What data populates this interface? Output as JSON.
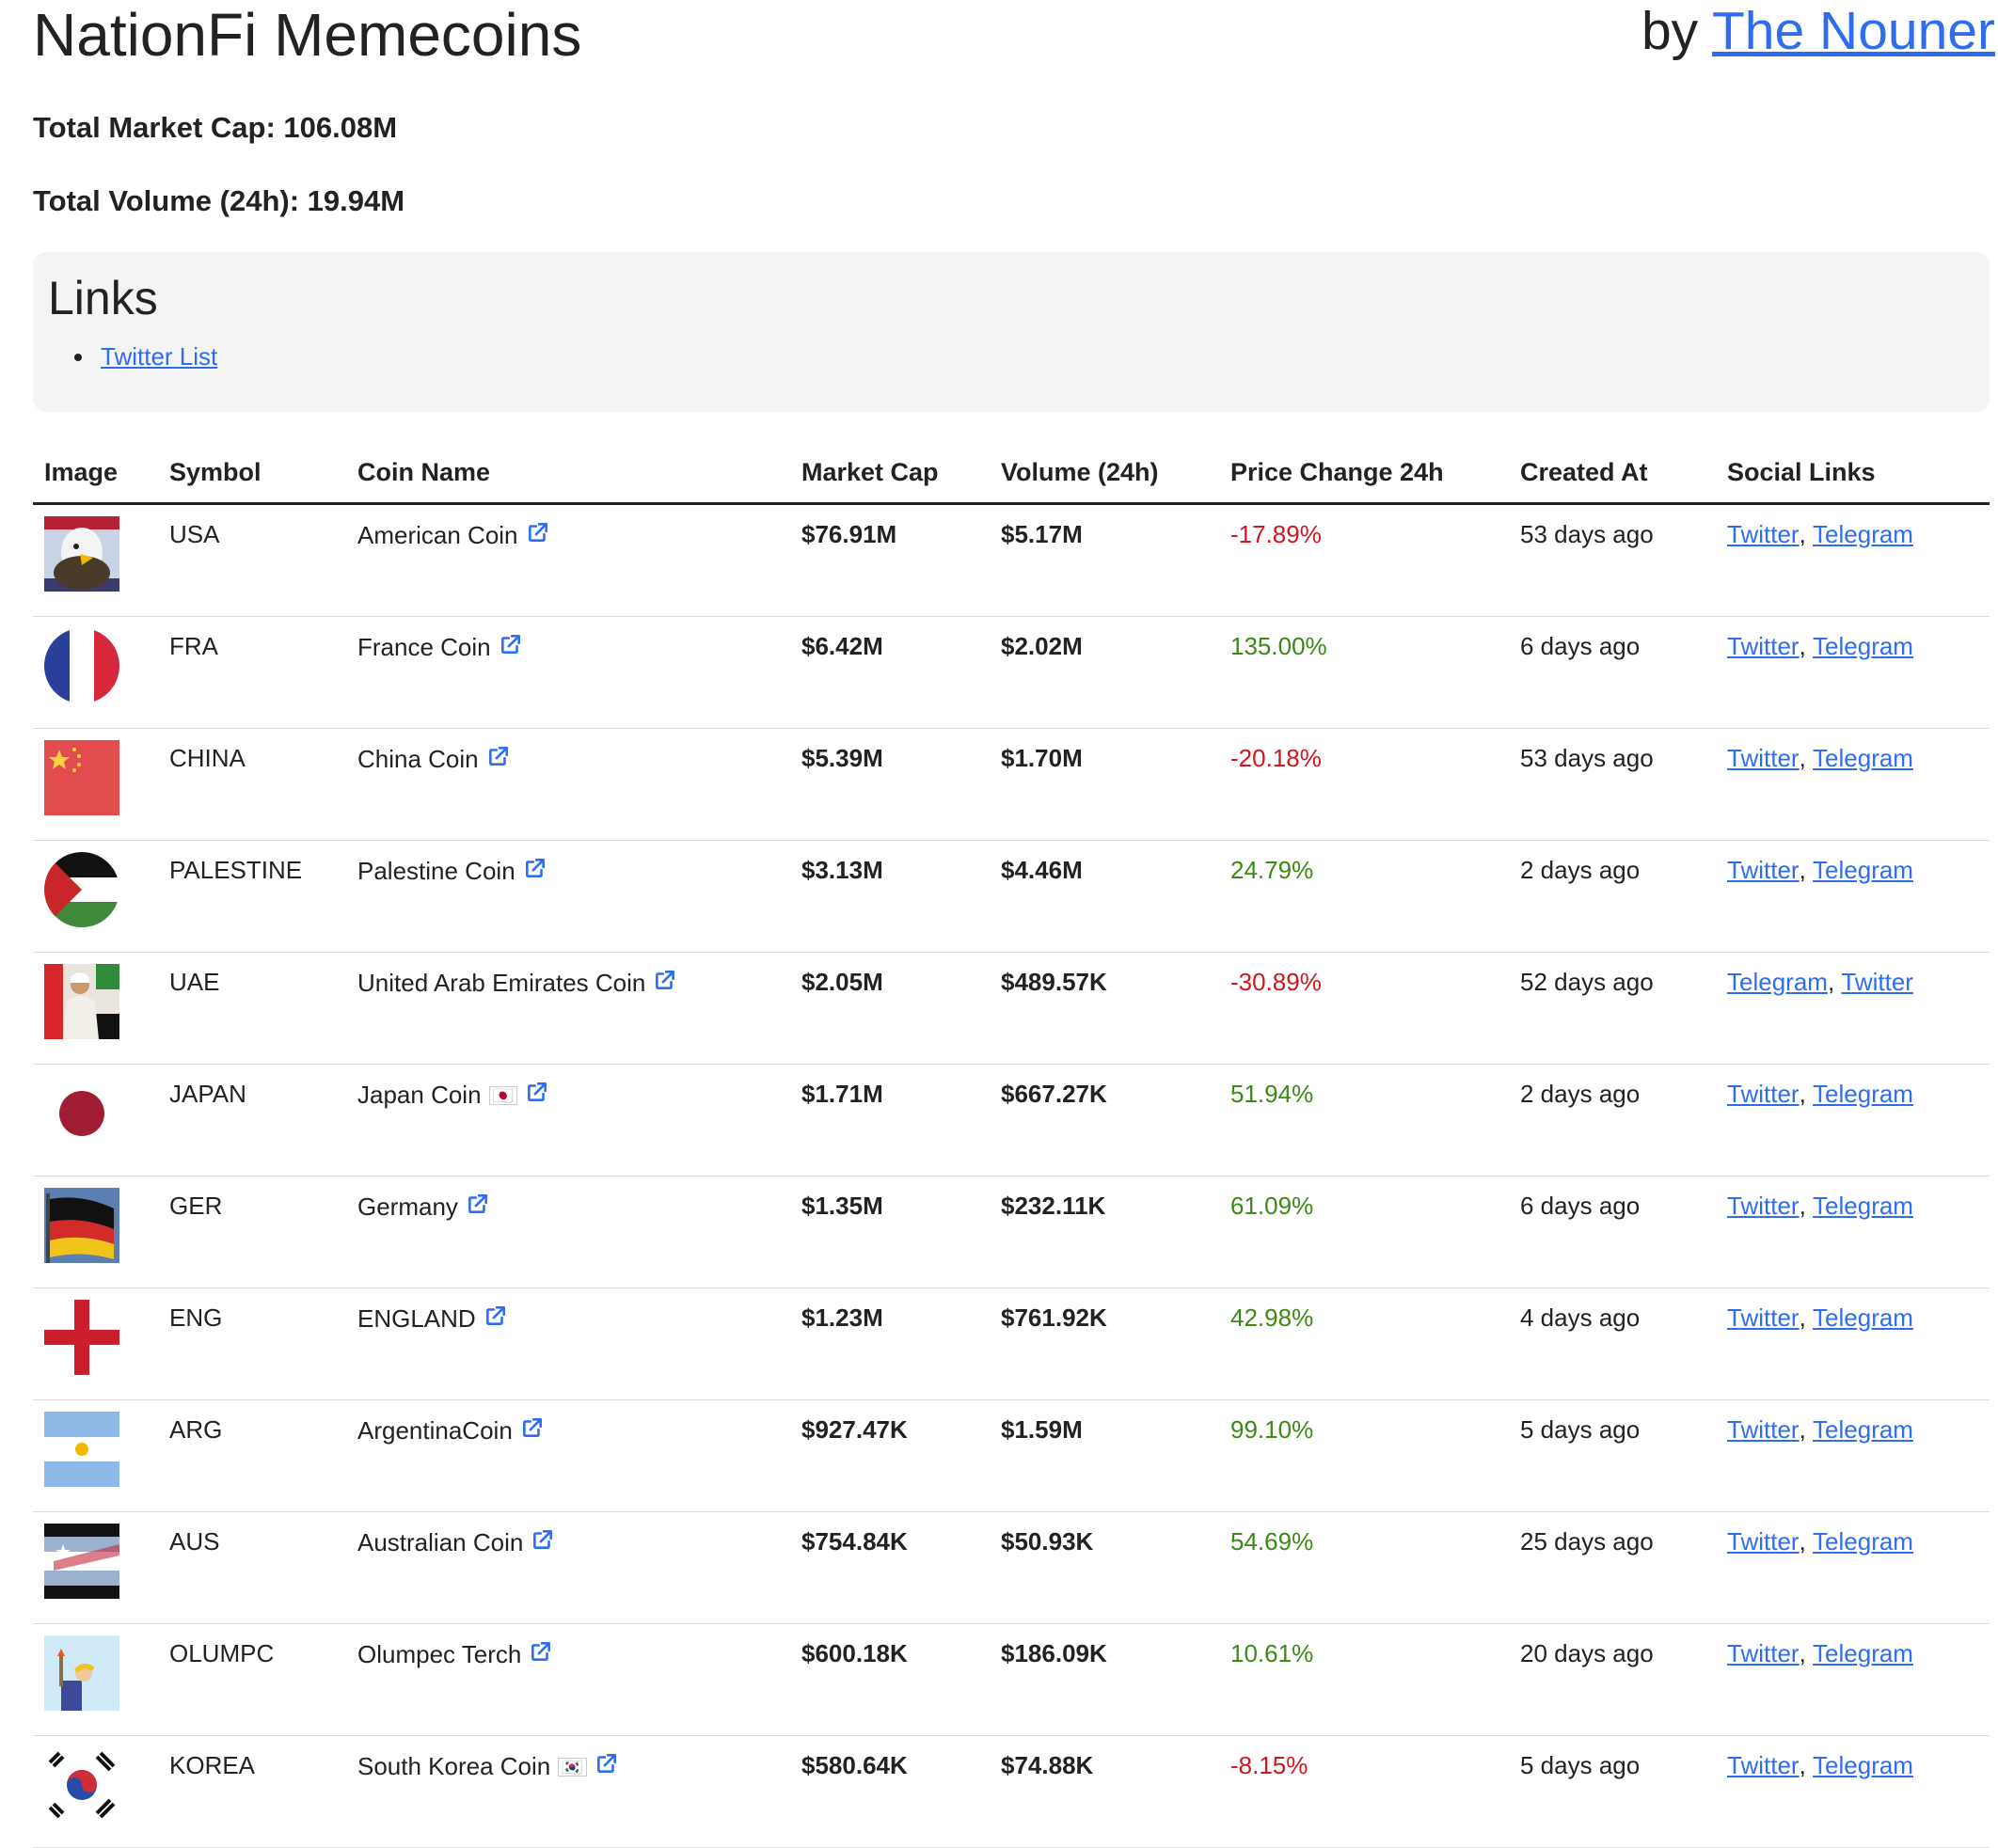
{
  "header": {
    "title": "NationFi Memecoins",
    "by_prefix": "by",
    "by_link": "The Nouner"
  },
  "stats": {
    "market_cap": "Total Market Cap: 106.08M",
    "volume": "Total Volume (24h): 19.94M"
  },
  "links": {
    "title": "Links",
    "items": [
      "Twitter List"
    ]
  },
  "table": {
    "columns": [
      "Image",
      "Symbol",
      "Coin Name",
      "Market Cap",
      "Volume (24h)",
      "Price Change 24h",
      "Created At",
      "Social Links"
    ],
    "rows": [
      {
        "image": "eagle-flag-image",
        "symbol": "USA",
        "name": "American Coin",
        "flag": "",
        "market_cap": "$76.91M",
        "volume": "$5.17M",
        "change": "-17.89%",
        "trend": "neg",
        "created": "53 days ago",
        "social": [
          "Twitter",
          "Telegram"
        ]
      },
      {
        "image": "france-flag-image",
        "symbol": "FRA",
        "name": "France Coin",
        "flag": "",
        "market_cap": "$6.42M",
        "volume": "$2.02M",
        "change": "135.00%",
        "trend": "pos",
        "created": "6 days ago",
        "social": [
          "Twitter",
          "Telegram"
        ]
      },
      {
        "image": "china-flag-image",
        "symbol": "CHINA",
        "name": "China Coin",
        "flag": "",
        "market_cap": "$5.39M",
        "volume": "$1.70M",
        "change": "-20.18%",
        "trend": "neg",
        "created": "53 days ago",
        "social": [
          "Twitter",
          "Telegram"
        ]
      },
      {
        "image": "palestine-flag-image",
        "symbol": "PALESTINE",
        "name": "Palestine Coin",
        "flag": "",
        "market_cap": "$3.13M",
        "volume": "$4.46M",
        "change": "24.79%",
        "trend": "pos",
        "created": "2 days ago",
        "social": [
          "Twitter",
          "Telegram"
        ]
      },
      {
        "image": "uae-flag-image",
        "symbol": "UAE",
        "name": "United Arab Emirates Coin",
        "flag": "",
        "market_cap": "$2.05M",
        "volume": "$489.57K",
        "change": "-30.89%",
        "trend": "neg",
        "created": "52 days ago",
        "social": [
          "Telegram",
          "Twitter"
        ]
      },
      {
        "image": "japan-flag-image",
        "symbol": "JAPAN",
        "name": "Japan Coin",
        "flag": "🇯🇵",
        "market_cap": "$1.71M",
        "volume": "$667.27K",
        "change": "51.94%",
        "trend": "pos",
        "created": "2 days ago",
        "social": [
          "Twitter",
          "Telegram"
        ]
      },
      {
        "image": "germany-flag-image",
        "symbol": "GER",
        "name": "Germany",
        "flag": "",
        "market_cap": "$1.35M",
        "volume": "$232.11K",
        "change": "61.09%",
        "trend": "pos",
        "created": "6 days ago",
        "social": [
          "Twitter",
          "Telegram"
        ]
      },
      {
        "image": "england-flag-image",
        "symbol": "ENG",
        "name": "ENGLAND",
        "flag": "",
        "market_cap": "$1.23M",
        "volume": "$761.92K",
        "change": "42.98%",
        "trend": "pos",
        "created": "4 days ago",
        "social": [
          "Twitter",
          "Telegram"
        ]
      },
      {
        "image": "argentina-flag-image",
        "symbol": "ARG",
        "name": "ArgentinaCoin",
        "flag": "",
        "market_cap": "$927.47K",
        "volume": "$1.59M",
        "change": "99.10%",
        "trend": "pos",
        "created": "5 days ago",
        "social": [
          "Twitter",
          "Telegram"
        ]
      },
      {
        "image": "australia-flag-image",
        "symbol": "AUS",
        "name": "Australian Coin",
        "flag": "",
        "market_cap": "$754.84K",
        "volume": "$50.93K",
        "change": "54.69%",
        "trend": "pos",
        "created": "25 days ago",
        "social": [
          "Twitter",
          "Telegram"
        ]
      },
      {
        "image": "olumpc-image",
        "symbol": "OLUMPC",
        "name": "Olumpec Terch",
        "flag": "",
        "market_cap": "$600.18K",
        "volume": "$186.09K",
        "change": "10.61%",
        "trend": "pos",
        "created": "20 days ago",
        "social": [
          "Twitter",
          "Telegram"
        ]
      },
      {
        "image": "korea-flag-image",
        "symbol": "KOREA",
        "name": "South Korea Coin",
        "flag": "🇰🇷",
        "market_cap": "$580.64K",
        "volume": "$74.88K",
        "change": "-8.15%",
        "trend": "neg",
        "created": "5 days ago",
        "social": [
          "Twitter",
          "Telegram"
        ]
      }
    ]
  },
  "colors": {
    "link": "#2f6df0",
    "negative": "#d0161e",
    "positive": "#3a8a14"
  }
}
